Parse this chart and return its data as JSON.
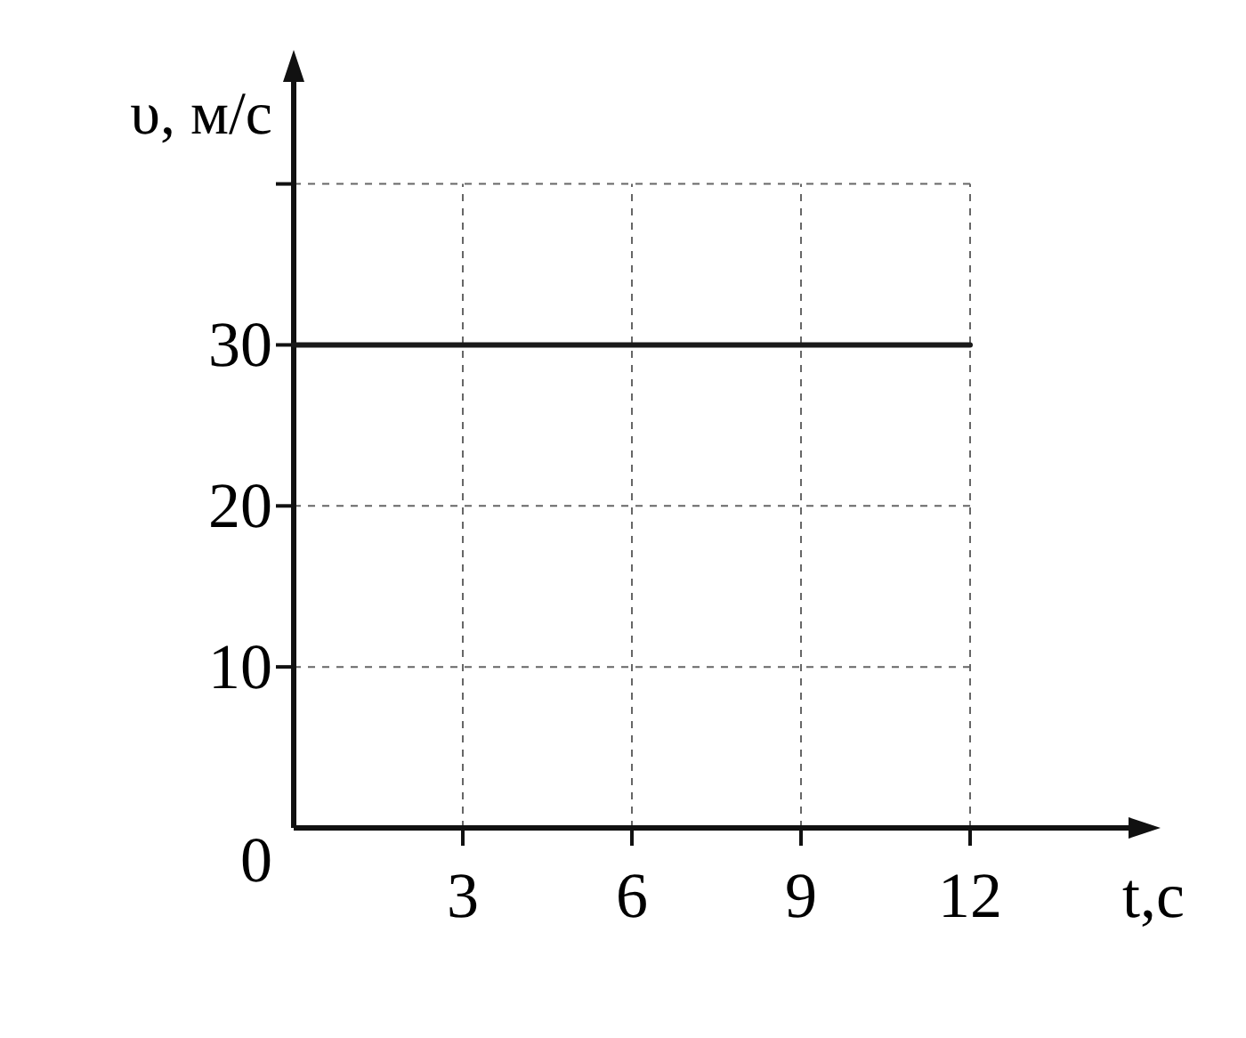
{
  "chart_data": {
    "type": "line",
    "xlabel": "t,с",
    "ylabel": "υ, м/с",
    "x": [
      0,
      12
    ],
    "series": [
      {
        "color": "#1a1a1a",
        "values": [
          30,
          30
        ]
      }
    ],
    "xlim": [
      0,
      15
    ],
    "ylim": [
      0,
      47
    ],
    "xticks": [
      3,
      6,
      9,
      12
    ],
    "yticks": [
      0,
      10,
      20,
      30,
      {
        "value": 40,
        "label": null
      }
    ],
    "grid": true
  }
}
